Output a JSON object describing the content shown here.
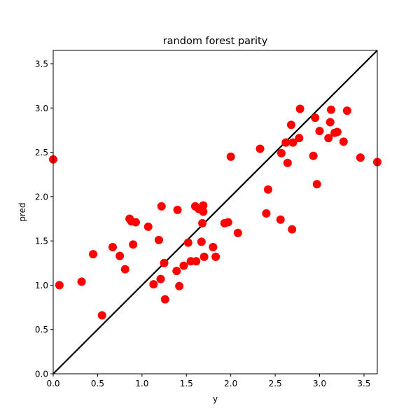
{
  "chart_data": {
    "type": "scatter",
    "title": "random forest parity",
    "xlabel": "y",
    "ylabel": "pred",
    "xlim": [
      0,
      3.65
    ],
    "ylim": [
      0,
      3.65
    ],
    "xticks": [
      "0.0",
      "0.5",
      "1.0",
      "1.5",
      "2.0",
      "2.5",
      "3.0",
      "3.5"
    ],
    "yticks": [
      "0.0",
      "0.5",
      "1.0",
      "1.5",
      "2.0",
      "2.5",
      "3.0",
      "3.5"
    ],
    "grid": false,
    "point_color": "#ff0000",
    "line_color": "#000000",
    "reference_line": {
      "x": [
        0,
        3.65
      ],
      "y": [
        0,
        3.65
      ]
    },
    "series": [
      {
        "x": [
          0.0,
          0.07,
          0.32,
          0.45,
          0.55,
          0.67,
          0.75,
          0.81,
          0.86,
          0.88,
          0.9,
          0.93,
          1.07,
          1.13,
          1.19,
          1.21,
          1.22,
          1.25,
          1.26,
          1.39,
          1.4,
          1.42,
          1.47,
          1.52,
          1.55,
          1.6,
          1.61,
          1.64,
          1.67,
          1.68,
          1.69,
          1.69,
          1.7,
          1.8,
          1.83,
          1.93,
          1.97,
          2.0,
          2.08,
          2.33,
          2.4,
          2.42,
          2.56,
          2.57,
          2.62,
          2.64,
          2.68,
          2.69,
          2.7,
          2.77,
          2.78,
          2.93,
          2.95,
          2.97,
          3.0,
          3.1,
          3.12,
          3.13,
          3.17,
          3.2,
          3.27,
          3.31,
          3.46,
          3.65
        ],
        "y": [
          2.42,
          1.0,
          1.04,
          1.35,
          0.66,
          1.43,
          1.33,
          1.18,
          1.75,
          1.72,
          1.46,
          1.71,
          1.66,
          1.01,
          1.51,
          1.07,
          1.89,
          1.25,
          0.84,
          1.16,
          1.85,
          0.99,
          1.22,
          1.48,
          1.27,
          1.89,
          1.27,
          1.86,
          1.49,
          1.7,
          1.9,
          1.83,
          1.32,
          1.43,
          1.32,
          1.7,
          1.71,
          2.45,
          1.59,
          2.54,
          1.81,
          2.08,
          1.74,
          2.49,
          2.61,
          2.38,
          2.81,
          1.63,
          2.61,
          2.66,
          2.99,
          2.46,
          2.89,
          2.14,
          2.74,
          2.66,
          2.84,
          2.98,
          2.72,
          2.73,
          2.62,
          2.97,
          2.44,
          2.39
        ]
      }
    ]
  }
}
